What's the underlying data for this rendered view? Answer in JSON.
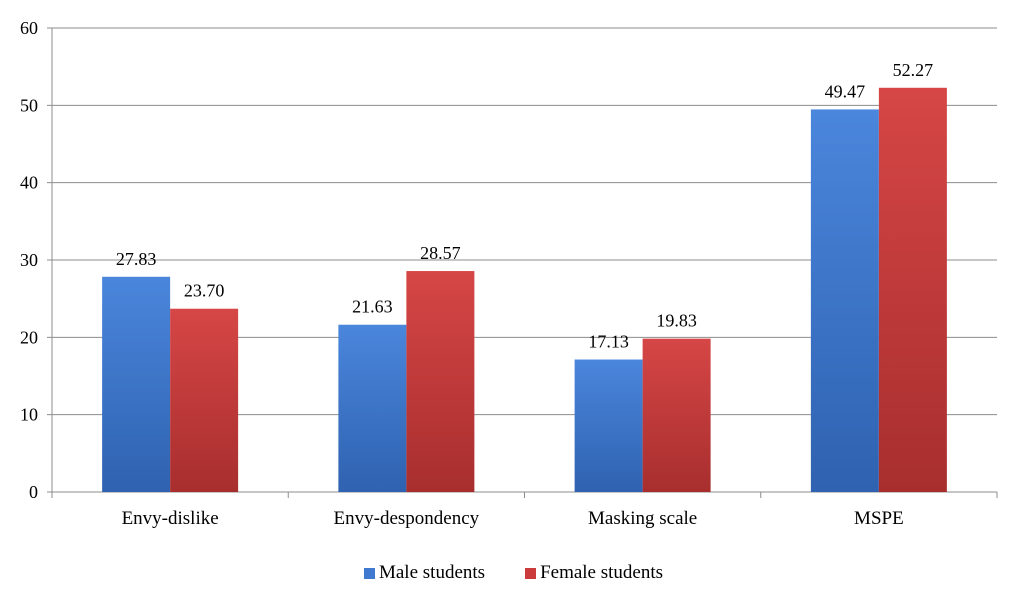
{
  "chart_data": {
    "type": "bar",
    "categories": [
      "Envy-dislike",
      "Envy-despondency",
      "Masking scale",
      "MSPE"
    ],
    "series": [
      {
        "name": "Male students",
        "values": [
          27.83,
          21.63,
          17.13,
          49.47
        ],
        "color": "#3f7ad0"
      },
      {
        "name": "Female students",
        "values": [
          23.7,
          28.57,
          19.83,
          52.27
        ],
        "color": "#cc3b3b"
      }
    ],
    "data_labels": [
      [
        "27.83",
        "21.63",
        "17.13",
        "49.47"
      ],
      [
        "23.70",
        "28.57",
        "19.83",
        "52.27"
      ]
    ],
    "ylim": [
      0,
      60
    ],
    "yticks": [
      0,
      10,
      20,
      30,
      40,
      50,
      60
    ],
    "grid": true,
    "legend_position": "bottom",
    "title": "",
    "xlabel": "",
    "ylabel": ""
  }
}
